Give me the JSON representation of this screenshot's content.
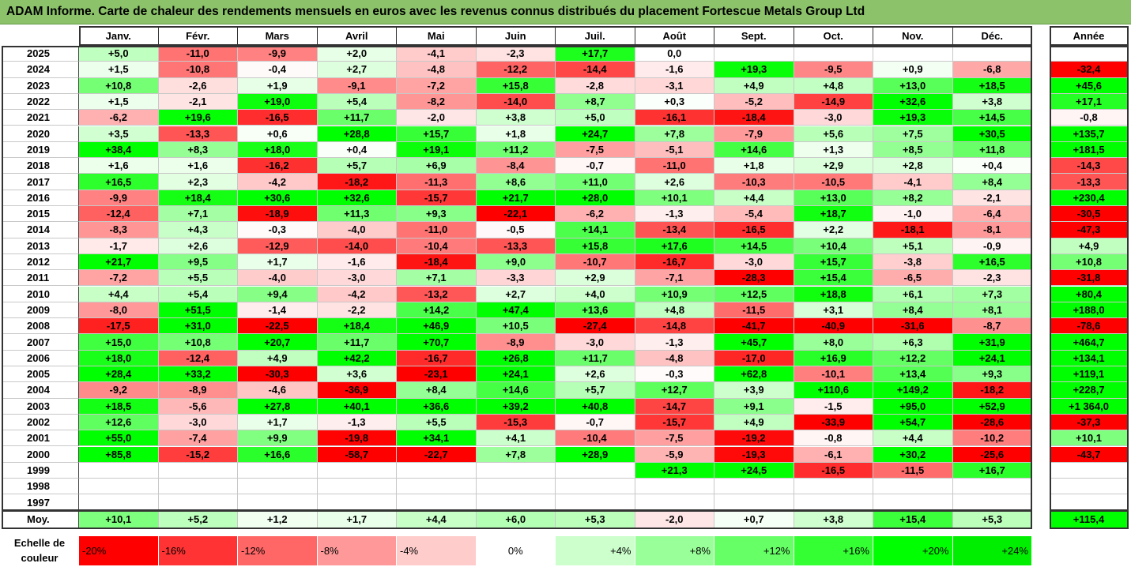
{
  "title": "ADAM Informe. Carte de chaleur des rendements mensuels en euros avec les revenus connus distribués du placement Fortescue Metals Group Ltd",
  "chart_data": {
    "type": "heatmap",
    "title": "ADAM Informe. Carte de chaleur des rendements mensuels en euros avec les revenus connus distribués du placement Fortescue Metals Group Ltd",
    "columns": [
      "Janv.",
      "Févr.",
      "Mars",
      "Avril",
      "Mai",
      "Juin",
      "Juil.",
      "Août",
      "Sept.",
      "Oct.",
      "Nov.",
      "Déc."
    ],
    "year_column": "Année",
    "rows": [
      {
        "year": "2025",
        "values": [
          5.0,
          -11.0,
          -9.9,
          2.0,
          -4.1,
          -2.3,
          17.7,
          0.0,
          null,
          null,
          null,
          null
        ],
        "annual": null
      },
      {
        "year": "2024",
        "values": [
          1.5,
          -10.8,
          -0.4,
          2.7,
          -4.8,
          -12.2,
          -14.4,
          -1.6,
          19.3,
          -9.5,
          0.9,
          -6.8
        ],
        "annual": -32.4
      },
      {
        "year": "2023",
        "values": [
          10.8,
          -2.6,
          1.9,
          -9.1,
          -7.2,
          15.8,
          -2.8,
          -3.1,
          4.9,
          4.8,
          13.0,
          18.5
        ],
        "annual": 45.6
      },
      {
        "year": "2022",
        "values": [
          1.5,
          -2.1,
          19.0,
          5.4,
          -8.2,
          -14.0,
          8.7,
          0.3,
          -5.2,
          -14.9,
          32.6,
          3.8
        ],
        "annual": 17.1
      },
      {
        "year": "2021",
        "values": [
          -6.2,
          19.6,
          -16.5,
          11.7,
          -2.0,
          3.8,
          5.0,
          -16.1,
          -18.4,
          -3.0,
          19.3,
          14.5
        ],
        "annual": -0.8
      },
      {
        "year": "2020",
        "values": [
          3.5,
          -13.3,
          0.6,
          28.8,
          15.7,
          1.8,
          24.7,
          7.8,
          -7.9,
          5.6,
          7.5,
          30.5
        ],
        "annual": 135.7
      },
      {
        "year": "2019",
        "values": [
          38.4,
          8.3,
          18.0,
          0.4,
          19.1,
          11.2,
          -7.5,
          -5.1,
          14.6,
          1.3,
          8.5,
          11.8
        ],
        "annual": 181.5
      },
      {
        "year": "2018",
        "values": [
          1.6,
          1.6,
          -16.2,
          5.7,
          6.9,
          -8.4,
          -0.7,
          -11.0,
          1.8,
          2.9,
          2.8,
          0.4
        ],
        "annual": -14.3
      },
      {
        "year": "2017",
        "values": [
          16.5,
          2.3,
          -4.2,
          -18.2,
          -11.3,
          8.6,
          11.0,
          2.6,
          -10.3,
          -10.5,
          -4.1,
          8.4
        ],
        "annual": -13.3
      },
      {
        "year": "2016",
        "values": [
          -9.9,
          18.4,
          30.6,
          32.6,
          -15.7,
          21.7,
          28.0,
          10.1,
          4.4,
          13.0,
          8.2,
          -2.1
        ],
        "annual": 230.4
      },
      {
        "year": "2015",
        "values": [
          -12.4,
          7.1,
          -18.9,
          11.3,
          9.3,
          -22.1,
          -6.2,
          -1.3,
          -5.4,
          18.7,
          -1.0,
          -6.4
        ],
        "annual": -30.5
      },
      {
        "year": "2014",
        "values": [
          -8.3,
          4.3,
          -0.3,
          -4.0,
          -11.0,
          -0.5,
          14.1,
          -13.4,
          -16.5,
          2.2,
          -18.1,
          -8.1
        ],
        "annual": -47.3
      },
      {
        "year": "2013",
        "values": [
          -1.7,
          2.6,
          -12.9,
          -14.0,
          -10.4,
          -13.3,
          15.8,
          17.6,
          14.5,
          10.4,
          5.1,
          -0.9
        ],
        "annual": 4.9
      },
      {
        "year": "2012",
        "values": [
          21.7,
          9.5,
          1.7,
          -1.6,
          -18.4,
          9.0,
          -10.7,
          -16.7,
          -3.0,
          15.7,
          -3.8,
          16.5
        ],
        "annual": 10.8
      },
      {
        "year": "2011",
        "values": [
          -7.2,
          5.5,
          -4.0,
          -3.0,
          7.1,
          -3.3,
          2.9,
          -7.1,
          -28.3,
          15.4,
          -6.5,
          -2.3
        ],
        "annual": -31.8
      },
      {
        "year": "2010",
        "values": [
          4.4,
          5.4,
          9.4,
          -4.2,
          -13.2,
          2.7,
          4.0,
          10.9,
          12.5,
          18.8,
          6.1,
          7.3
        ],
        "annual": 80.4
      },
      {
        "year": "2009",
        "values": [
          -8.0,
          51.5,
          -1.4,
          -2.2,
          14.2,
          47.4,
          13.6,
          4.8,
          -11.5,
          3.1,
          8.4,
          8.1
        ],
        "annual": 188.0
      },
      {
        "year": "2008",
        "values": [
          -17.5,
          31.0,
          -22.5,
          18.4,
          46.9,
          10.5,
          -27.4,
          -14.8,
          -41.7,
          -40.9,
          -31.6,
          -8.7
        ],
        "annual": -78.6
      },
      {
        "year": "2007",
        "values": [
          15.0,
          10.8,
          20.7,
          11.7,
          70.7,
          -8.9,
          -3.0,
          -1.3,
          45.7,
          8.0,
          6.3,
          31.9
        ],
        "annual": 464.7
      },
      {
        "year": "2006",
        "values": [
          18.0,
          -12.4,
          4.9,
          42.2,
          -16.7,
          26.8,
          11.7,
          -4.8,
          -17.0,
          16.9,
          12.2,
          24.1
        ],
        "annual": 134.1
      },
      {
        "year": "2005",
        "values": [
          28.4,
          33.2,
          -30.3,
          3.6,
          -23.1,
          24.1,
          2.6,
          -0.3,
          62.8,
          -10.1,
          13.4,
          9.3
        ],
        "annual": 119.1
      },
      {
        "year": "2004",
        "values": [
          -9.2,
          -8.9,
          -4.6,
          -36.9,
          8.4,
          14.6,
          5.7,
          12.7,
          3.9,
          110.6,
          149.2,
          -18.2
        ],
        "annual": 228.7
      },
      {
        "year": "2003",
        "values": [
          18.5,
          -5.6,
          27.8,
          40.1,
          36.6,
          39.2,
          40.8,
          -14.7,
          9.1,
          -1.5,
          95.0,
          52.9
        ],
        "annual": 1364.0
      },
      {
        "year": "2002",
        "values": [
          12.6,
          -3.0,
          1.7,
          -1.3,
          5.5,
          -15.3,
          -0.7,
          -15.7,
          4.9,
          -33.9,
          54.7,
          -28.6
        ],
        "annual": -37.3
      },
      {
        "year": "2001",
        "values": [
          55.0,
          -7.4,
          9.9,
          -19.8,
          34.1,
          4.1,
          -10.4,
          -7.5,
          -19.2,
          -0.8,
          4.4,
          -10.2
        ],
        "annual": 10.1
      },
      {
        "year": "2000",
        "values": [
          85.8,
          -15.2,
          16.6,
          -58.7,
          -22.7,
          7.8,
          28.9,
          -5.9,
          -19.3,
          -6.1,
          30.2,
          -25.6
        ],
        "annual": -43.7
      },
      {
        "year": "1999",
        "values": [
          null,
          null,
          null,
          null,
          null,
          null,
          null,
          21.3,
          24.5,
          -16.5,
          -11.5,
          16.7
        ],
        "annual": null
      },
      {
        "year": "1998",
        "values": [
          null,
          null,
          null,
          null,
          null,
          null,
          null,
          null,
          null,
          null,
          null,
          null
        ],
        "annual": null
      },
      {
        "year": "1997",
        "values": [
          null,
          null,
          null,
          null,
          null,
          null,
          null,
          null,
          null,
          null,
          null,
          null
        ],
        "annual": null
      }
    ],
    "average": {
      "label": "Moy.",
      "values": [
        10.1,
        5.2,
        1.2,
        1.7,
        4.4,
        6.0,
        5.3,
        -2.0,
        0.7,
        3.8,
        15.4,
        5.3
      ],
      "annual": 115.4
    },
    "color_scale": {
      "label": "Echelle de couleur",
      "stops": [
        {
          "text": "-20%",
          "value": -20,
          "color": "#ff0000"
        },
        {
          "text": "-16%",
          "value": -16,
          "color": "#ff3333"
        },
        {
          "text": "-12%",
          "value": -12,
          "color": "#ff6666"
        },
        {
          "text": "-8%",
          "value": -8,
          "color": "#ff9999"
        },
        {
          "text": "-4%",
          "value": -4,
          "color": "#ffcccc"
        },
        {
          "text": "0%",
          "value": 0,
          "color": "#ffffff"
        },
        {
          "text": "+4%",
          "value": 4,
          "color": "#ccffcc"
        },
        {
          "text": "+8%",
          "value": 8,
          "color": "#99ff99"
        },
        {
          "text": "+12%",
          "value": 12,
          "color": "#66ff66"
        },
        {
          "text": "+16%",
          "value": 16,
          "color": "#33ff33"
        },
        {
          "text": "+20%",
          "value": 20,
          "color": "#00ff00"
        },
        {
          "text": "+24%",
          "value": 24,
          "color": "#00ee00"
        }
      ]
    }
  }
}
